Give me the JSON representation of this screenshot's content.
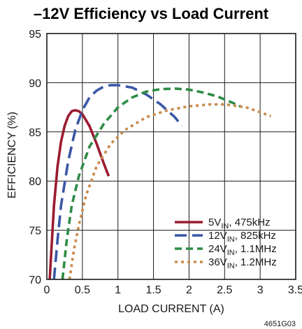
{
  "chart_data": {
    "type": "line",
    "title": "–12V Efficiency vs Load Current",
    "xlabel": "LOAD CURRENT (A)",
    "ylabel": "EFFICIENCY (%)",
    "xlim": [
      0,
      3.5
    ],
    "ylim": [
      70,
      95
    ],
    "x_ticks": [
      "0",
      "0.5",
      "1",
      "1.5",
      "2",
      "2.5",
      "3",
      "3.5"
    ],
    "y_ticks": [
      "70",
      "75",
      "80",
      "85",
      "90",
      "95"
    ],
    "grid": true,
    "legend_position": "bottom-right",
    "figure_id": "4651G03",
    "series": [
      {
        "name": "5V",
        "name_sub": "IN",
        "name_suffix": ", 475kHz",
        "color": "#9b1b30",
        "dash": "solid",
        "points": [
          [
            0.04,
            70
          ],
          [
            0.06,
            72.5
          ],
          [
            0.1,
            77.5
          ],
          [
            0.15,
            81.5
          ],
          [
            0.2,
            84
          ],
          [
            0.25,
            85.6
          ],
          [
            0.3,
            86.6
          ],
          [
            0.35,
            87.1
          ],
          [
            0.4,
            87.2
          ],
          [
            0.45,
            87.1
          ],
          [
            0.5,
            86.8
          ],
          [
            0.6,
            85.6
          ],
          [
            0.7,
            83.8
          ],
          [
            0.8,
            81.8
          ],
          [
            0.87,
            80.5
          ]
        ]
      },
      {
        "name": "12V",
        "name_sub": "IN",
        "name_suffix": ", 825kHz",
        "color": "#3a57a6",
        "dash": "long",
        "points": [
          [
            0.1,
            70
          ],
          [
            0.15,
            74
          ],
          [
            0.2,
            77.5
          ],
          [
            0.3,
            82
          ],
          [
            0.4,
            85.2
          ],
          [
            0.5,
            87.2
          ],
          [
            0.6,
            88.5
          ],
          [
            0.7,
            89.2
          ],
          [
            0.8,
            89.6
          ],
          [
            0.9,
            89.75
          ],
          [
            1.0,
            89.75
          ],
          [
            1.2,
            89.5
          ],
          [
            1.4,
            88.8
          ],
          [
            1.6,
            87.8
          ],
          [
            1.8,
            86.5
          ],
          [
            1.9,
            85.6
          ]
        ]
      },
      {
        "name": "24V",
        "name_sub": "IN",
        "name_suffix": ", 1.1MHz",
        "color": "#2e8b45",
        "dash": "medium",
        "points": [
          [
            0.22,
            70
          ],
          [
            0.28,
            74
          ],
          [
            0.35,
            77.5
          ],
          [
            0.45,
            80.5
          ],
          [
            0.6,
            83.5
          ],
          [
            0.8,
            85.8
          ],
          [
            1.0,
            87.5
          ],
          [
            1.2,
            88.5
          ],
          [
            1.4,
            89.1
          ],
          [
            1.6,
            89.35
          ],
          [
            1.8,
            89.4
          ],
          [
            2.0,
            89.3
          ],
          [
            2.2,
            89.0
          ],
          [
            2.4,
            88.6
          ],
          [
            2.6,
            88.0
          ],
          [
            2.72,
            87.6
          ]
        ]
      },
      {
        "name": "36V",
        "name_sub": "IN",
        "name_suffix": ", 1.2MHz",
        "color": "#c88a4a",
        "dash": "dot",
        "points": [
          [
            0.32,
            70
          ],
          [
            0.38,
            73
          ],
          [
            0.45,
            75.5
          ],
          [
            0.55,
            78.5
          ],
          [
            0.7,
            81.5
          ],
          [
            0.9,
            83.8
          ],
          [
            1.1,
            85.2
          ],
          [
            1.4,
            86.5
          ],
          [
            1.7,
            87.2
          ],
          [
            2.0,
            87.6
          ],
          [
            2.3,
            87.8
          ],
          [
            2.5,
            87.8
          ],
          [
            2.8,
            87.5
          ],
          [
            3.0,
            87.0
          ],
          [
            3.15,
            86.6
          ]
        ]
      }
    ]
  }
}
